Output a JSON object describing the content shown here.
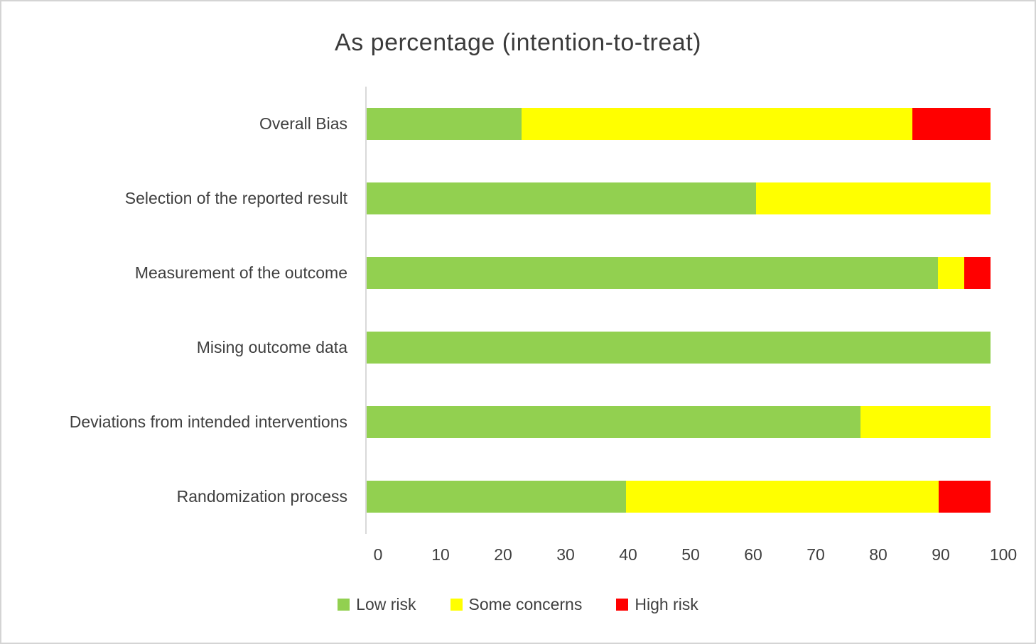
{
  "chart_data": {
    "type": "bar",
    "orientation": "horizontal",
    "stacked": true,
    "title": "As percentage (intention-to-treat)",
    "categories": [
      "Overall Bias",
      "Selection of the reported result",
      "Measurement of the outcome",
      "Mising outcome data",
      "Deviations from intended interventions",
      "Randomization process"
    ],
    "series": [
      {
        "name": "Low risk",
        "color": "#92D050",
        "values": [
          25,
          62.5,
          91.6,
          100,
          79.2,
          41.7
        ]
      },
      {
        "name": "Some concerns",
        "color": "#FFFF00",
        "values": [
          62.5,
          37.5,
          4.2,
          0,
          20.8,
          50
        ]
      },
      {
        "name": "High risk",
        "color": "#FF0000",
        "values": [
          12.5,
          0,
          4.2,
          0,
          0,
          8.3
        ]
      }
    ],
    "xlabel": "",
    "ylabel": "",
    "xlim": [
      0,
      100
    ],
    "x_ticks": [
      0,
      10,
      20,
      30,
      40,
      50,
      60,
      70,
      80,
      90,
      100
    ],
    "grid": false,
    "legend_position": "bottom",
    "axis_line_color": "#D9D9D9",
    "text_color": "#3F3F3F"
  }
}
